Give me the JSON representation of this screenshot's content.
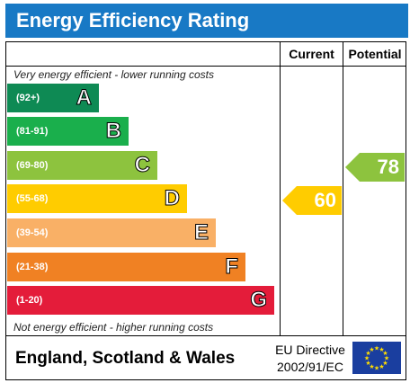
{
  "header": {
    "title": "Energy Efficiency Rating"
  },
  "columns": {
    "current": "Current",
    "potential": "Potential"
  },
  "notes": {
    "top": "Very energy efficient - lower running costs",
    "bottom": "Not energy efficient - higher running costs"
  },
  "footer": {
    "region": "England, Scotland & Wales",
    "directive_line1": "EU Directive",
    "directive_line2": "2002/91/EC"
  },
  "chart_data": {
    "type": "bar",
    "title": "Energy Efficiency Rating",
    "bands": [
      {
        "letter": "A",
        "range": "(92+)",
        "color": "#0e8a54",
        "length_rank": 1
      },
      {
        "letter": "B",
        "range": "(81-91)",
        "color": "#1aaf4c",
        "length_rank": 2
      },
      {
        "letter": "C",
        "range": "(69-80)",
        "color": "#8dc33e",
        "length_rank": 3
      },
      {
        "letter": "D",
        "range": "(55-68)",
        "color": "#ffcc00",
        "length_rank": 4
      },
      {
        "letter": "E",
        "range": "(39-54)",
        "color": "#f9b066",
        "length_rank": 5
      },
      {
        "letter": "F",
        "range": "(21-38)",
        "color": "#f08123",
        "length_rank": 6
      },
      {
        "letter": "G",
        "range": "(1-20)",
        "color": "#e41c3a",
        "length_rank": 7
      }
    ],
    "ratings": [
      {
        "column": "Current",
        "value": 60,
        "band": "D",
        "color": "#ffcc00"
      },
      {
        "column": "Potential",
        "value": 78,
        "band": "C",
        "color": "#8dc33e"
      }
    ]
  }
}
